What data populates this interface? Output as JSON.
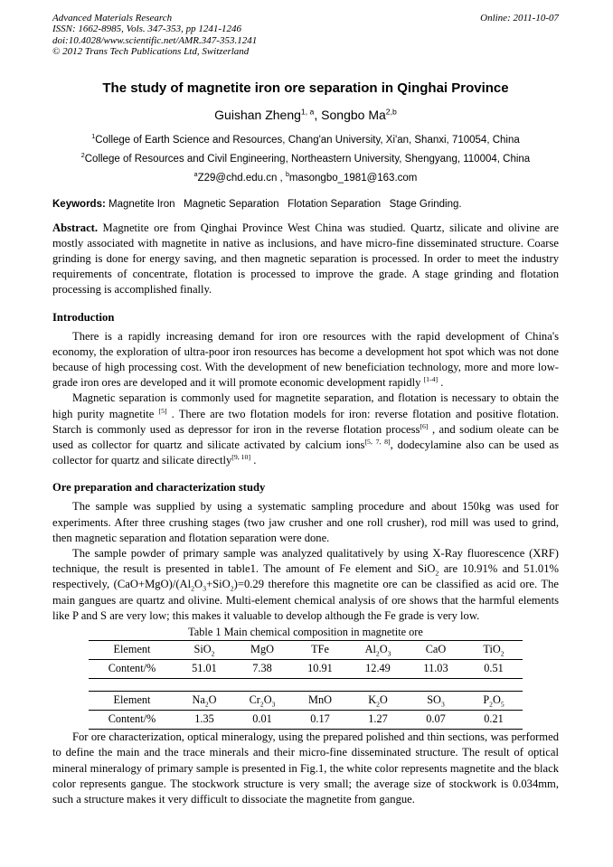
{
  "colors": {
    "text": "#000000",
    "background": "#ffffff"
  },
  "page": {
    "header": {
      "journal": "Advanced Materials Research",
      "online": "Online: 2011-10-07",
      "issn": "ISSN: 1662-8985, Vols. 347-353, pp 1241-1246",
      "doi": "doi:10.4028/www.scientific.net/AMR.347-353.1241",
      "copyright": "© 2012 Trans Tech Publications Ltd, Switzerland"
    },
    "title": "The study of magnetite iron ore separation in Qinghai Province",
    "authors_runs": [
      "Guishan Zheng",
      {
        "sup": "1, a"
      },
      ", Songbo Ma",
      {
        "sup": "2,b"
      }
    ],
    "affiliations": [
      [
        {
          "sup": "1"
        },
        "College of Earth Science and Resources, Chang'an University, Xi'an, Shanxi, 710054, China"
      ],
      [
        {
          "sup": "2"
        },
        "College of Resources and Civil Engineering, Northeastern University, Shengyang, 110004, China"
      ]
    ],
    "emails_runs": [
      {
        "sup": "a"
      },
      "Z29@chd.edu.cn , ",
      {
        "sup": "b"
      },
      "masongbo_1981@163.com"
    ],
    "keywords": {
      "label": "Keywords:",
      "text": " Magnetite Iron   Magnetic Separation   Flotation Separation   Stage Grinding."
    },
    "abstract": {
      "label": "Abstract.",
      "text": " Magnetite ore from Qinghai Province West China was studied. Quartz, silicate and olivine are mostly associated with magnetite in native as inclusions, and have micro-fine disseminated structure. Coarse grinding is done for energy saving, and then magnetic separation is processed. In order to meet the industry requirements of concentrate, flotation is processed to improve the grade. A stage grinding and flotation processing is accomplished finally."
    },
    "sections": {
      "introduction": {
        "heading": "Introduction",
        "p1": [
          "There is a rapidly increasing demand for iron ore resources with the rapid development of China's economy, the exploration of ultra-poor iron resources has become a development hot spot which was not done because of high processing cost. With the development of new beneficiation technology, more and more low-grade iron ores are developed and it will promote economic development rapidly ",
          {
            "sup": "[1-4]"
          },
          " ."
        ],
        "p2": [
          "Magnetic separation is commonly used for magnetite separation, and flotation is necessary to obtain the high purity magnetite ",
          {
            "sup": "[5]"
          },
          " . There are two flotation models for iron: reverse flotation and positive flotation. Starch is commonly used as depressor for iron in the reverse flotation process",
          {
            "sup": "[6]"
          },
          " , and sodium oleate can be used as collector for quartz and silicate activated by calcium ions",
          {
            "sup": "[5, 7, 8]"
          },
          ", dodecylamine also can be used as collector for quartz and silicate directly",
          {
            "sup": "[9, 10]"
          },
          " ."
        ]
      },
      "ore": {
        "heading": "Ore preparation and characterization study",
        "p1": [
          "The sample was supplied by using a systematic sampling procedure and about 150kg was used for experiments. After three crushing stages (two jaw crusher and one roll crusher), rod mill was used to grind, then magnetic separation and flotation separation were done."
        ],
        "p2": [
          "The sample powder of primary sample was analyzed qualitatively by using X-Ray fluorescence (XRF) technique, the result is presented in table1. The amount of Fe element and SiO",
          {
            "sub": "2"
          },
          " are 10.91% and 51.01% respectively, (CaO+MgO)/(Al",
          {
            "sub": "2"
          },
          "O",
          {
            "sub": "3"
          },
          "+SiO",
          {
            "sub": "2"
          },
          ")=0.29 therefore this magnetite ore can be classified as acid ore. The main gangues are quartz and olivine. Multi-element chemical analysis of ore shows that the harmful elements like P and S are very low; this makes it valuable to develop although the Fe grade is very low."
        ],
        "p3": [
          "For ore characterization, optical mineralogy, using the prepared polished and thin sections, was performed to define the main and the trace minerals and their micro-fine disseminated structure. The result of optical mineral mineralogy of primary sample is presented in Fig.1, the white color represents magnetite and the black color represents gangue. The stockwork structure is very small; the average size of stockwork is 0.034mm, such a structure makes it very difficult to dissociate the magnetite from gangue."
        ]
      }
    },
    "table1": {
      "caption": "Table 1 Main chemical composition in magnetite ore",
      "blocks": [
        {
          "rows": [
            {
              "label": "Element",
              "cells": [
                [
                  "SiO",
                  {
                    "sub": "2"
                  }
                ],
                [
                  "MgO"
                ],
                [
                  "TFe"
                ],
                [
                  "Al",
                  {
                    "sub": "2"
                  },
                  "O",
                  {
                    "sub": "3"
                  }
                ],
                [
                  "CaO"
                ],
                [
                  "TiO",
                  {
                    "sub": "2"
                  }
                ]
              ]
            },
            {
              "label": "Content/%",
              "cells": [
                [
                  "51.01"
                ],
                [
                  "7.38"
                ],
                [
                  "10.91"
                ],
                [
                  "12.49"
                ],
                [
                  "11.03"
                ],
                [
                  "0.51"
                ]
              ]
            }
          ]
        },
        {
          "rows": [
            {
              "label": "Element",
              "cells": [
                [
                  "Na",
                  {
                    "sub": "2"
                  },
                  "O"
                ],
                [
                  "Cr",
                  {
                    "sub": "2"
                  },
                  "O",
                  {
                    "sub": "3"
                  }
                ],
                [
                  "MnO"
                ],
                [
                  "K",
                  {
                    "sub": "2"
                  },
                  "O"
                ],
                [
                  "SO",
                  {
                    "sub": "3"
                  }
                ],
                [
                  "P",
                  {
                    "sub": "2"
                  },
                  "O",
                  {
                    "sub": "5"
                  }
                ]
              ]
            },
            {
              "label": "Content/%",
              "cells": [
                [
                  "1.35"
                ],
                [
                  "0.01"
                ],
                [
                  "0.17"
                ],
                [
                  "1.27"
                ],
                [
                  "0.07"
                ],
                [
                  "0.21"
                ]
              ]
            }
          ]
        }
      ]
    }
  }
}
